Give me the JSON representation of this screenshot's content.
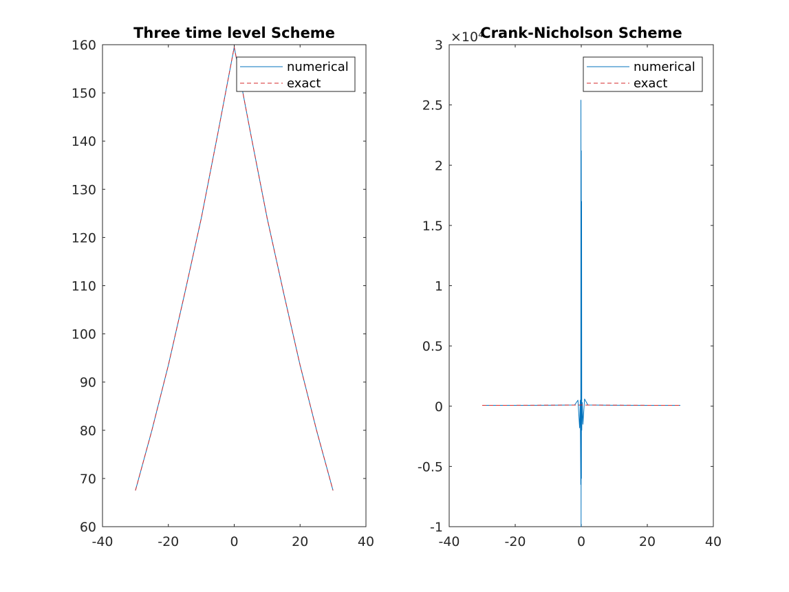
{
  "figure": {
    "background": "#ffffff"
  },
  "chart_data": [
    {
      "type": "line",
      "title": "Three time level Scheme",
      "xlabel": "",
      "ylabel": "",
      "xlim": [
        -40,
        40
      ],
      "ylim": [
        60,
        160
      ],
      "xticks": [
        -40,
        -20,
        0,
        20,
        40
      ],
      "yticks": [
        60,
        70,
        80,
        90,
        100,
        110,
        120,
        130,
        140,
        150,
        160
      ],
      "xtick_labels": [
        "-40",
        "-20",
        "0",
        "20",
        "40"
      ],
      "ytick_labels": [
        "60",
        "70",
        "80",
        "90",
        "100",
        "110",
        "120",
        "130",
        "140",
        "150",
        "160"
      ],
      "grid": false,
      "legend_location": "top-right",
      "series": [
        {
          "name": "numerical",
          "color": "#0072bd",
          "style": "solid",
          "x": [
            -30,
            -25,
            -20,
            -15,
            -10,
            -5,
            0,
            5,
            10,
            15,
            20,
            25,
            30
          ],
          "y": [
            67.5,
            80,
            93.5,
            108.5,
            124,
            141.5,
            159.5,
            141.5,
            124,
            108.5,
            93.5,
            80,
            67.5
          ]
        },
        {
          "name": "exact",
          "color": "#d62728",
          "style": "dashed",
          "x": [
            -30,
            -25,
            -20,
            -15,
            -10,
            -5,
            0,
            5,
            10,
            15,
            20,
            25,
            30
          ],
          "y": [
            67.5,
            80,
            93.5,
            108.5,
            124,
            141.5,
            159.5,
            141.5,
            124,
            108.5,
            93.5,
            80,
            67.5
          ]
        }
      ]
    },
    {
      "type": "line",
      "title": "Crank-Nicholson Scheme",
      "xlabel": "",
      "ylabel": "",
      "y_exponent_label": "×10⁴",
      "xlim": [
        -40,
        40
      ],
      "ylim": [
        -1,
        3
      ],
      "xticks": [
        -40,
        -20,
        0,
        20,
        40
      ],
      "yticks": [
        -1,
        -0.5,
        0,
        0.5,
        1,
        1.5,
        2,
        2.5,
        3
      ],
      "xtick_labels": [
        "-40",
        "-20",
        "0",
        "20",
        "40"
      ],
      "ytick_labels": [
        "-1",
        "-0.5",
        "0",
        "0.5",
        "1",
        "1.5",
        "2",
        "2.5",
        "3"
      ],
      "grid": false,
      "legend_location": "top-right",
      "series": [
        {
          "name": "numerical",
          "color": "#0072bd",
          "style": "solid",
          "x": [
            -30,
            -20,
            -10,
            -2,
            -1,
            -0.5,
            -0.3,
            -0.15,
            -0.1,
            -0.05,
            0,
            0.05,
            0.1,
            0.15,
            0.3,
            0.5,
            1,
            2,
            10,
            20,
            30
          ],
          "y": [
            0.0068,
            0.0072,
            0.0078,
            0.01,
            0.05,
            -0.18,
            0.05,
            -0.65,
            2.54,
            -1.0,
            2.12,
            -0.6,
            1.7,
            -0.2,
            0.03,
            -0.15,
            0.06,
            0.01,
            0.0078,
            0.0072,
            0.0068
          ]
        },
        {
          "name": "exact",
          "color": "#d62728",
          "style": "dashed",
          "x": [
            -30,
            -20,
            -10,
            0,
            10,
            20,
            30
          ],
          "y": [
            0.0068,
            0.0075,
            0.0085,
            0.0097,
            0.0085,
            0.0075,
            0.0068
          ]
        }
      ]
    }
  ]
}
